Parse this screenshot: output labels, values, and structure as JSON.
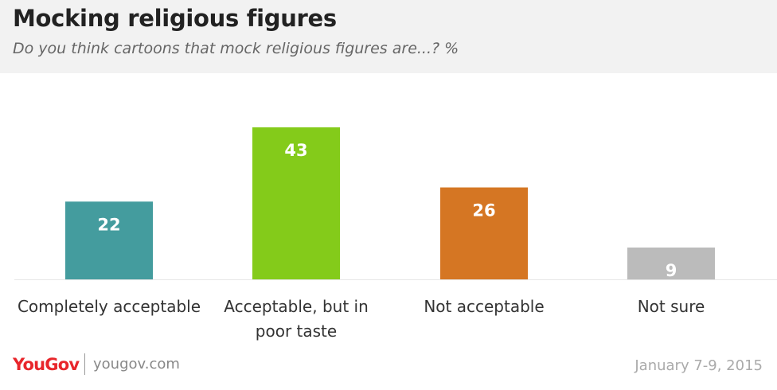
{
  "header": {
    "title": "Mocking religious figures",
    "subtitle": "Do you think cartoons that mock religious figures are...? %"
  },
  "chart_data": {
    "type": "bar",
    "categories": [
      "Completely acceptable",
      "Acceptable, but in poor taste",
      "Not acceptable",
      "Not sure"
    ],
    "category_lines": [
      [
        "Completely acceptable"
      ],
      [
        "Acceptable, but in",
        "poor taste"
      ],
      [
        "Not acceptable"
      ],
      [
        "Not sure"
      ]
    ],
    "values": [
      22,
      43,
      26,
      9
    ],
    "colors": [
      "#449c9e",
      "#84cb1a",
      "#d57623",
      "#bbbbbb"
    ],
    "title": "Mocking religious figures",
    "subtitle": "Do you think cartoons that mock religious figures are...? %",
    "xlabel": "",
    "ylabel": "",
    "ylim": [
      0,
      43
    ],
    "grid": false,
    "legend": "none"
  },
  "footer": {
    "logo": "YouGov",
    "site": "yougov.com",
    "date": "January 7-9, 2015"
  }
}
